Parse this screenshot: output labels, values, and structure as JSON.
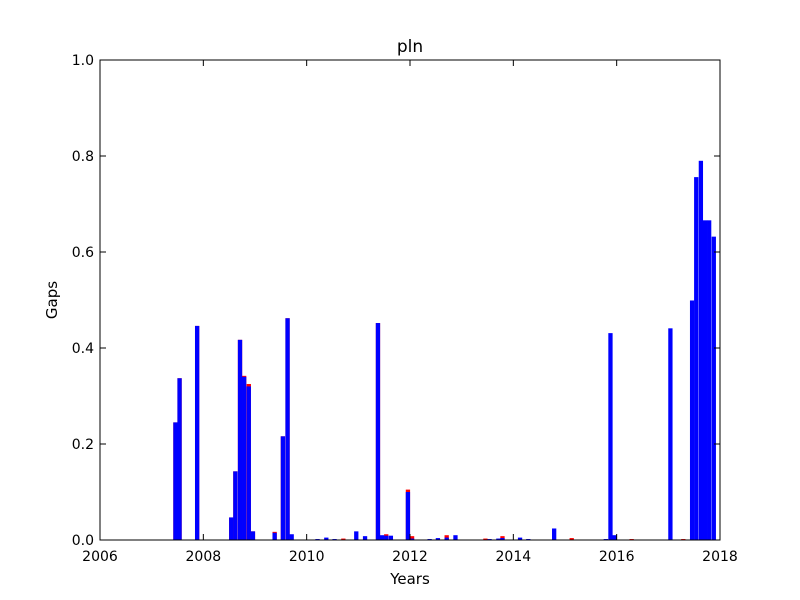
{
  "chart_data": {
    "type": "bar",
    "title": "pln",
    "xlabel": "Years",
    "ylabel": "Gaps",
    "xlim": [
      2006,
      2018
    ],
    "ylim": [
      0.0,
      1.0
    ],
    "bar_width_years": 0.083,
    "x_ticks": [
      2006,
      2008,
      2010,
      2012,
      2014,
      2016,
      2018
    ],
    "x_tick_labels": [
      "2006",
      "2008",
      "2010",
      "2012",
      "2014",
      "2016",
      "2018"
    ],
    "y_ticks": [
      0.0,
      0.2,
      0.4,
      0.6,
      0.8,
      1.0
    ],
    "y_tick_labels": [
      "0.0",
      "0.2",
      "0.4",
      "0.6",
      "0.8",
      "1.0"
    ],
    "grid": false,
    "legend": "none",
    "colors": {
      "series_red": "#ff0000",
      "series_blue": "#0000ff"
    },
    "series": [
      {
        "color": "#ff0000",
        "x": [
          2007.46,
          2007.54,
          2007.88,
          2008.54,
          2008.62,
          2008.71,
          2008.79,
          2008.88,
          2008.96,
          2009.38,
          2009.54,
          2009.63,
          2010.71,
          2011.38,
          2011.54,
          2011.96,
          2012.04,
          2012.71,
          2013.46,
          2013.79,
          2015.13,
          2016.29,
          2017.29
        ],
        "values": [
          0.245,
          0.337,
          0.446,
          0.047,
          0.143,
          0.417,
          0.342,
          0.325,
          0.018,
          0.017,
          0.216,
          0.462,
          0.003,
          0.452,
          0.012,
          0.105,
          0.008,
          0.01,
          0.003,
          0.008,
          0.004,
          0.002,
          0.002
        ]
      },
      {
        "color": "#0000ff",
        "x": [
          2007.46,
          2007.54,
          2007.88,
          2008.54,
          2008.62,
          2008.71,
          2008.79,
          2008.88,
          2008.96,
          2009.38,
          2009.54,
          2009.63,
          2009.71,
          2010.21,
          2010.38,
          2010.54,
          2010.96,
          2011.13,
          2011.38,
          2011.46,
          2011.54,
          2011.63,
          2011.96,
          2012.04,
          2012.38,
          2012.54,
          2012.71,
          2012.88,
          2013.54,
          2013.71,
          2013.79,
          2014.13,
          2014.29,
          2014.79,
          2015.79,
          2015.88,
          2015.96,
          2017.04,
          2017.46,
          2017.54,
          2017.63,
          2017.71,
          2017.79,
          2017.88
        ],
        "values": [
          0.245,
          0.337,
          0.446,
          0.047,
          0.143,
          0.417,
          0.34,
          0.32,
          0.018,
          0.015,
          0.216,
          0.462,
          0.012,
          0.002,
          0.005,
          0.002,
          0.018,
          0.008,
          0.452,
          0.01,
          0.009,
          0.009,
          0.1,
          0.003,
          0.002,
          0.004,
          0.005,
          0.01,
          0.002,
          0.003,
          0.004,
          0.005,
          0.002,
          0.024,
          0.002,
          0.431,
          0.01,
          0.441,
          0.499,
          0.756,
          0.79,
          0.666,
          0.666,
          0.632
        ]
      }
    ]
  }
}
